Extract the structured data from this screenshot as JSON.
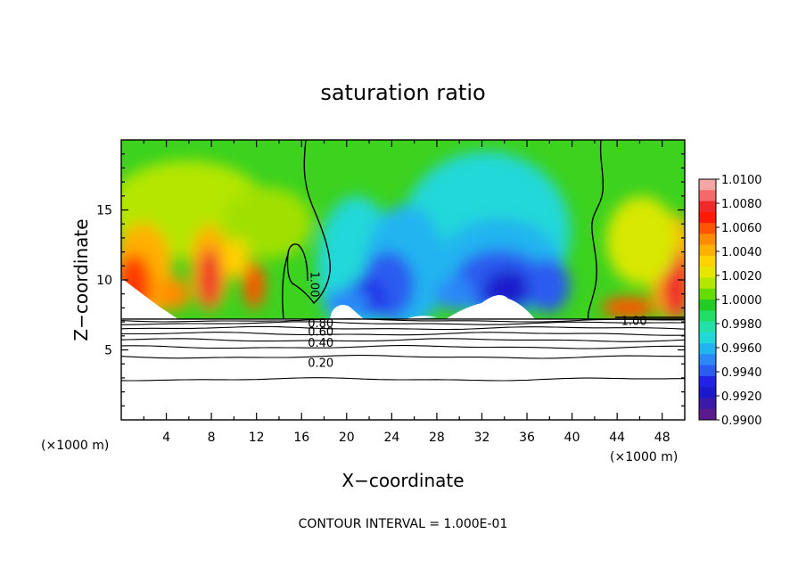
{
  "chart_data": {
    "type": "heatmap",
    "title": "saturation ratio",
    "xlabel": "X−coordinate",
    "ylabel": "Z−coordinate",
    "x_unit_left": "(×1000 m)",
    "x_unit_right": "(×1000 m)",
    "xlim": [
      0,
      50
    ],
    "ylim": [
      0,
      20
    ],
    "x_ticks": [
      4,
      8,
      12,
      16,
      20,
      24,
      28,
      32,
      36,
      40,
      44,
      48
    ],
    "y_ticks": [
      5,
      10,
      15
    ],
    "grid": false,
    "legend_position": "right",
    "colorbar": {
      "ticks": [
        "1.0100",
        "1.0080",
        "1.0060",
        "1.0040",
        "1.0020",
        "1.0000",
        "0.9980",
        "0.9960",
        "0.9940",
        "0.9920",
        "0.9900"
      ],
      "colors": [
        "#f4a6a6",
        "#f46a6a",
        "#ee2a2a",
        "#ff1a00",
        "#ff5500",
        "#ff8c00",
        "#ffb000",
        "#ffd200",
        "#e6e600",
        "#b4e600",
        "#66dd00",
        "#22cc22",
        "#22dd66",
        "#22e0a8",
        "#22d8d8",
        "#22b4f0",
        "#2a88f8",
        "#2a5cf0",
        "#2222e6",
        "#1a1acc",
        "#3a1aa8",
        "#5a1a90"
      ]
    },
    "contour_interval_text": "CONTOUR INTERVAL = 1.000E-01",
    "contour_labels": [
      {
        "text": "1.00",
        "x": 16.8,
        "y": 10.0,
        "rotate": 90
      },
      {
        "text": "1.00",
        "x": 45.5,
        "y": 7.1,
        "rotate": 0
      },
      {
        "text": "0.80",
        "x": 17.7,
        "y": 6.95,
        "rotate": 0
      },
      {
        "text": "0.60",
        "x": 17.7,
        "y": 6.35,
        "rotate": 0
      },
      {
        "text": "0.40",
        "x": 17.7,
        "y": 5.55,
        "rotate": 0
      },
      {
        "text": "0.20",
        "x": 17.7,
        "y": 4.1,
        "rotate": 0
      }
    ],
    "contour_levels": [
      {
        "level": 0.8,
        "z": 7.1
      },
      {
        "level": 0.7,
        "z": 6.9
      },
      {
        "level": 0.6,
        "z": 6.55
      },
      {
        "level": 0.5,
        "z": 6.15
      },
      {
        "level": 0.4,
        "z": 5.7
      },
      {
        "level": 0.3,
        "z": 5.2
      },
      {
        "level": 0.2,
        "z": 4.5
      },
      {
        "level": 0.1,
        "z": 2.9
      }
    ],
    "cloud_base_z": 7.2
  }
}
